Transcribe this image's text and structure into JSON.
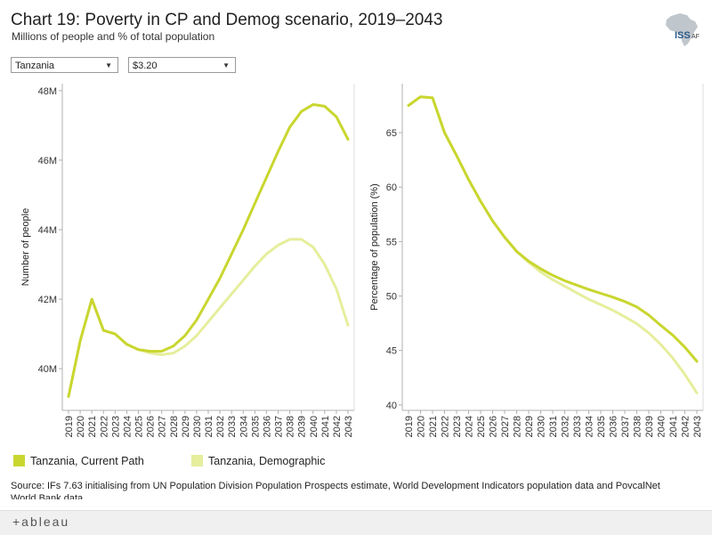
{
  "header": {
    "title": "Chart 19: Poverty in CP and Demog scenario, 2019–2043",
    "subtitle": "Millions of people and % of total population",
    "logo_text": "ISS",
    "logo_suffix": "AF"
  },
  "filters": {
    "country": {
      "selected": "Tanzania"
    },
    "threshold": {
      "selected": "$3.20"
    }
  },
  "legend": {
    "items": [
      {
        "label": "Tanzania, Current Path",
        "color": "#c9d62f"
      },
      {
        "label": "Tanzania, Demographic",
        "color": "#e6ee9c"
      }
    ]
  },
  "source": "Source: IFs 7.63 initialising from UN Population Division Population Prospects estimate, World Development Indicators population data and PovcalNet World Bank data",
  "footer": {
    "brand": "+ableau"
  },
  "colors": {
    "current_path": "#c9d62f",
    "demographic": "#e6ee9c"
  },
  "chart_data": [
    {
      "type": "line",
      "title": "Number of people",
      "xlabel": "",
      "ylabel": "Number of people",
      "x": [
        "2019",
        "2020",
        "2021",
        "2022",
        "2023",
        "2024",
        "2025",
        "2026",
        "2027",
        "2028",
        "2029",
        "2030",
        "2031",
        "2032",
        "2033",
        "2034",
        "2035",
        "2036",
        "2037",
        "2038",
        "2039",
        "2040",
        "2041",
        "2042",
        "2043"
      ],
      "ylim": [
        38.8,
        48.2
      ],
      "yticks": [
        40,
        42,
        44,
        46,
        48
      ],
      "ytick_labels": [
        "40M",
        "42M",
        "44M",
        "46M",
        "48M"
      ],
      "series": [
        {
          "name": "Tanzania, Current Path",
          "values": [
            39.2,
            40.8,
            42.0,
            41.1,
            41.0,
            40.7,
            40.55,
            40.5,
            40.5,
            40.65,
            40.95,
            41.4,
            42.0,
            42.6,
            43.3,
            44.0,
            44.75,
            45.5,
            46.25,
            46.95,
            47.4,
            47.6,
            47.55,
            47.25,
            46.6
          ]
        },
        {
          "name": "Tanzania, Demographic",
          "values": [
            39.2,
            40.8,
            42.0,
            41.1,
            41.0,
            40.7,
            40.55,
            40.45,
            40.4,
            40.45,
            40.65,
            40.95,
            41.35,
            41.75,
            42.15,
            42.55,
            42.95,
            43.3,
            43.55,
            43.72,
            43.72,
            43.5,
            43.0,
            42.3,
            41.25
          ]
        }
      ]
    },
    {
      "type": "line",
      "title": "Percentage of population (%)",
      "xlabel": "",
      "ylabel": "Percentage of population (%)",
      "x": [
        "2019",
        "2020",
        "2021",
        "2022",
        "2023",
        "2024",
        "2025",
        "2026",
        "2027",
        "2028",
        "2029",
        "2030",
        "2031",
        "2032",
        "2033",
        "2034",
        "2035",
        "2036",
        "2037",
        "2038",
        "2039",
        "2040",
        "2041",
        "2042",
        "2043"
      ],
      "ylim": [
        39.5,
        69.5
      ],
      "yticks": [
        40,
        45,
        50,
        55,
        60,
        65
      ],
      "ytick_labels": [
        "40",
        "45",
        "50",
        "55",
        "60",
        "65"
      ],
      "series": [
        {
          "name": "Tanzania, Current Path",
          "values": [
            67.5,
            68.3,
            68.2,
            65.0,
            62.9,
            60.7,
            58.7,
            56.9,
            55.4,
            54.1,
            53.2,
            52.5,
            51.9,
            51.4,
            51.0,
            50.6,
            50.25,
            49.9,
            49.5,
            49.0,
            48.25,
            47.3,
            46.4,
            45.3,
            44.0
          ]
        },
        {
          "name": "Tanzania, Demographic",
          "values": [
            67.5,
            68.3,
            68.2,
            65.0,
            62.9,
            60.7,
            58.7,
            56.9,
            55.4,
            54.1,
            53.1,
            52.2,
            51.5,
            50.9,
            50.3,
            49.7,
            49.2,
            48.7,
            48.1,
            47.45,
            46.6,
            45.55,
            44.3,
            42.8,
            41.1
          ]
        }
      ]
    }
  ]
}
